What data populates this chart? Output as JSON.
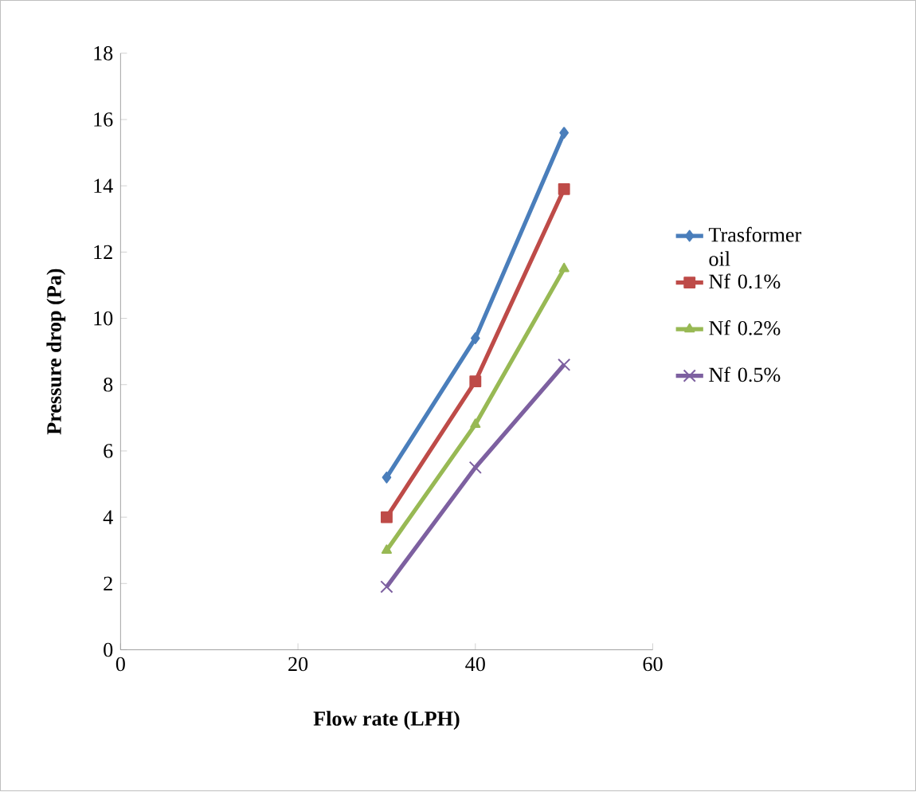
{
  "chart_data": {
    "type": "line",
    "xlabel": "Flow rate (LPH)",
    "ylabel": "Pressure drop (Pa)",
    "x": [
      30,
      40,
      50
    ],
    "series": [
      {
        "name": "Trasformer oil",
        "color": "#4a7ebb",
        "marker": "diamond",
        "values": [
          5.2,
          9.4,
          15.6
        ]
      },
      {
        "name": "Nf 0.1%",
        "color": "#be4b48",
        "marker": "square",
        "values": [
          4.0,
          8.1,
          13.9
        ]
      },
      {
        "name": "Nf 0.2%",
        "color": "#98b954",
        "marker": "triangle",
        "values": [
          3.0,
          6.8,
          11.5
        ]
      },
      {
        "name": "Nf 0.5%",
        "color": "#7d60a0",
        "marker": "cross",
        "values": [
          1.9,
          5.5,
          8.6
        ]
      }
    ],
    "xlim": [
      0,
      60
    ],
    "xticks": [
      0,
      20,
      40,
      60
    ],
    "ylim": [
      0,
      18
    ],
    "yticks": [
      0,
      2,
      4,
      6,
      8,
      10,
      12,
      14,
      16,
      18
    ],
    "grid": false,
    "legend": "right"
  }
}
